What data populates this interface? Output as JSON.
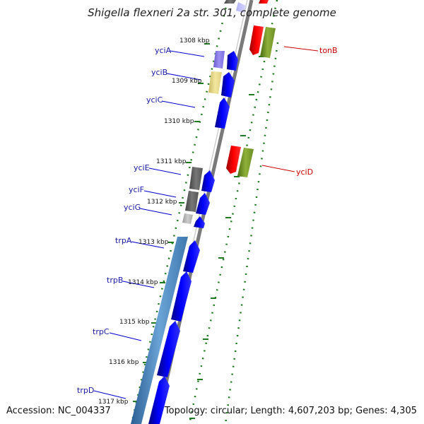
{
  "title": "Shigella flexneri 2a str. 301, complete genome",
  "footer": {
    "accession": "Accession: NC_004337",
    "summary": "Topology: circular; Length: 4,607,203 bp; Genes: 4,305"
  },
  "scale_labels": [
    "1308 kbp",
    "1309 kbp",
    "1310 kbp",
    "1311 kbp",
    "1312 kbp",
    "1313 kbp",
    "1314 kbp",
    "1315 kbp",
    "1316 kbp",
    "1317 kbp"
  ],
  "genes_left": [
    "yciA",
    "yciB",
    "yciC",
    "yciE",
    "yciF",
    "yciG",
    "trpA",
    "trpB",
    "trpC",
    "trpD"
  ],
  "genes_right": [
    "tonB",
    "yciD"
  ],
  "colors": {
    "forward_cds": "#0000ee",
    "reverse_cds": "#ee0000",
    "label_left": "#1a1aa6",
    "label_right": "#cc0000",
    "tick": "#1e7a1e",
    "backbone": "#7a7a7a",
    "olive_feature": "#6b8e23",
    "operon_blue": "#4a84b8"
  }
}
